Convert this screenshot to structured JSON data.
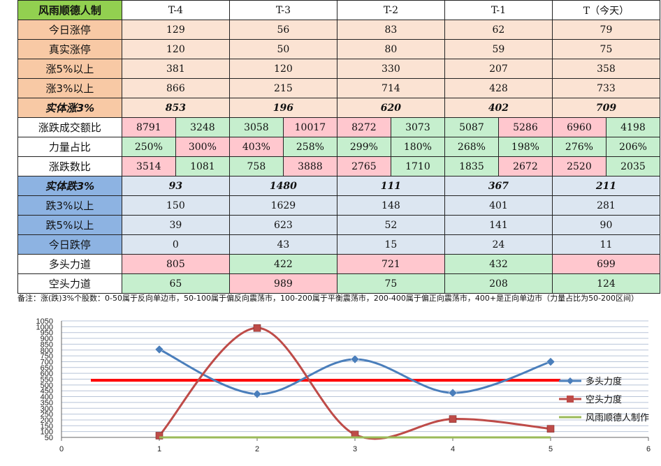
{
  "table": {
    "corner": "风雨顺德人制",
    "columns": [
      "T-4",
      "T-3",
      "T-2",
      "T-1",
      "T（今天）"
    ],
    "rows": {
      "r1": {
        "label": "今日涨停",
        "values": [
          "129",
          "56",
          "83",
          "62",
          "79"
        ]
      },
      "r2": {
        "label": "真实涨停",
        "values": [
          "120",
          "50",
          "80",
          "59",
          "75"
        ]
      },
      "r3": {
        "label": "涨5%以上",
        "values": [
          "381",
          "120",
          "330",
          "207",
          "358"
        ]
      },
      "r4": {
        "label": "涨3%以上",
        "values": [
          "866",
          "215",
          "714",
          "428",
          "733"
        ]
      },
      "r5": {
        "label": "实体涨3%",
        "values": [
          "853",
          "196",
          "620",
          "402",
          "709"
        ]
      },
      "r6": {
        "label": "涨跌成交额比",
        "values": [
          "8791",
          "3248",
          "3058",
          "10017",
          "8272",
          "3073",
          "5087",
          "5286",
          "6960",
          "4198"
        ]
      },
      "r7": {
        "label": "力量占比",
        "values": [
          "250%",
          "300%",
          "403%",
          "258%",
          "299%",
          "180%",
          "268%",
          "198%",
          "276%",
          "206%"
        ]
      },
      "r8": {
        "label": "涨跌数比",
        "values": [
          "3514",
          "1081",
          "758",
          "3888",
          "2765",
          "1710",
          "1835",
          "2672",
          "2520",
          "2035"
        ]
      },
      "r9": {
        "label": "实体跌3%",
        "values": [
          "93",
          "1480",
          "111",
          "367",
          "211"
        ]
      },
      "r10": {
        "label": "跌3%以上",
        "values": [
          "150",
          "1629",
          "148",
          "401",
          "281"
        ]
      },
      "r11": {
        "label": "跌5%以上",
        "values": [
          "39",
          "623",
          "52",
          "141",
          "90"
        ]
      },
      "r12": {
        "label": "今日跌停",
        "values": [
          "0",
          "43",
          "15",
          "24",
          "11"
        ]
      },
      "r13": {
        "label": "多头力道",
        "values": [
          "805",
          "422",
          "721",
          "432",
          "699"
        ]
      },
      "r14": {
        "label": "空头力道",
        "values": [
          "65",
          "989",
          "75",
          "208",
          "124"
        ]
      }
    },
    "cell_colors": {
      "pink": "#ffc7ce",
      "green": "#c6efce",
      "peach": "#fbe3d3",
      "blue": "#dce6f1"
    }
  },
  "note": "备注：涨(跌)3%个股数：0-50属于反向单边市，50-100属于偏反向震荡市，100-200属于平衡震荡市，200-400属于偏正向震荡市，400+是正向单边市（力量占比为50-200区间）",
  "chart_data": {
    "type": "line",
    "xlim": [
      0,
      6
    ],
    "x_ticks": [
      0,
      1,
      2,
      3,
      4,
      5,
      6
    ],
    "ylim": [
      50,
      1050
    ],
    "y_ticks": [
      50,
      100,
      150,
      200,
      250,
      300,
      350,
      400,
      450,
      500,
      550,
      600,
      650,
      700,
      750,
      800,
      850,
      900,
      950,
      1000,
      1050
    ],
    "grid": true,
    "legend_position": "right",
    "series": [
      {
        "name": "多头力度",
        "color": "#4a7ebb",
        "marker": "diamond",
        "smooth": true,
        "x": [
          1,
          2,
          3,
          4,
          5
        ],
        "values": [
          805,
          422,
          721,
          432,
          699
        ]
      },
      {
        "name": "空头力度",
        "color": "#be4b48",
        "marker": "square",
        "smooth": true,
        "x": [
          1,
          2,
          3,
          4,
          5
        ],
        "values": [
          65,
          989,
          75,
          208,
          124
        ]
      },
      {
        "name": "风雨顺德人制作",
        "color": "#9bbb59",
        "marker": "none",
        "smooth": false,
        "x": [
          1,
          5
        ],
        "values": [
          50,
          50
        ]
      }
    ],
    "reference_line": {
      "value": 540,
      "x": [
        0.3,
        5.1
      ],
      "color": "#ff0000"
    }
  }
}
